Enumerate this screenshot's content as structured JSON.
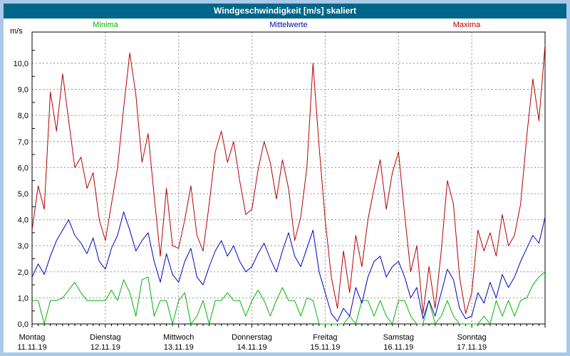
{
  "ui": {
    "frame_border_color": "#a9c9ea",
    "titlebar_bg": "#006687",
    "titlebar_text_color": "#ffffff",
    "plot_border_color": "#000000",
    "grid_color": "#909090",
    "plot_bg": "#ffffff"
  },
  "chart_data": {
    "type": "line",
    "title": "Windgeschwindigkeit [m/s] skaliert",
    "ylabel_unit": "m/s",
    "ylim": [
      0,
      11.2
    ],
    "grid": "dashed",
    "legend_position": "top",
    "y_ticks": [
      {
        "v": 0,
        "label": "0,0"
      },
      {
        "v": 1,
        "label": "1,0"
      },
      {
        "v": 2,
        "label": "2,0"
      },
      {
        "v": 3,
        "label": "3,0"
      },
      {
        "v": 4,
        "label": "4,0"
      },
      {
        "v": 5,
        "label": "5,0"
      },
      {
        "v": 6,
        "label": "6,0"
      },
      {
        "v": 7,
        "label": "7,0"
      },
      {
        "v": 8,
        "label": "8,0"
      },
      {
        "v": 9,
        "label": "9,0"
      },
      {
        "v": 10,
        "label": "10,0"
      }
    ],
    "x_range_days": 7,
    "days": [
      {
        "name": "Montag",
        "date": "11.11.19"
      },
      {
        "name": "Dienstag",
        "date": "12.11.19"
      },
      {
        "name": "Mittwoch",
        "date": "13.11.19"
      },
      {
        "name": "Donnerstag",
        "date": "14.11.19"
      },
      {
        "name": "Freitag",
        "date": "15.11.19"
      },
      {
        "name": "Samstag",
        "date": "16.11.19"
      },
      {
        "name": "Sonntag",
        "date": "17.11.19"
      }
    ],
    "series": [
      {
        "name": "Minima",
        "color": "#00b400",
        "values": [
          0.9,
          0.9,
          0.0,
          0.9,
          0.9,
          1.0,
          1.3,
          1.6,
          1.2,
          0.9,
          0.9,
          0.9,
          0.9,
          1.3,
          0.9,
          1.7,
          1.2,
          0.3,
          1.7,
          1.8,
          0.3,
          0.9,
          0.9,
          0.0,
          0.9,
          1.2,
          0.0,
          0.3,
          0.9,
          0.0,
          0.9,
          0.9,
          1.2,
          0.9,
          0.9,
          0.3,
          0.9,
          1.3,
          0.9,
          0.3,
          0.9,
          1.4,
          0.9,
          0.9,
          0.3,
          1.0,
          0.9,
          0.0,
          0.0,
          0.0,
          0.0,
          0.0,
          0.3,
          0.0,
          0.9,
          0.9,
          0.3,
          0.9,
          0.3,
          0.0,
          0.9,
          0.9,
          0.3,
          0.0,
          0.0,
          0.9,
          0.0,
          0.3,
          0.9,
          0.3,
          0.0,
          0.0,
          0.0,
          0.0,
          0.3,
          0.0,
          0.9,
          0.3,
          0.9,
          0.3,
          0.9,
          1.0,
          1.5,
          1.8,
          2.0
        ]
      },
      {
        "name": "Mittelwerte",
        "color": "#0000c8",
        "values": [
          1.8,
          2.3,
          1.9,
          2.6,
          3.2,
          3.6,
          4.0,
          3.4,
          3.1,
          2.7,
          3.3,
          2.4,
          2.1,
          2.9,
          3.4,
          4.3,
          3.6,
          2.8,
          3.2,
          3.5,
          2.4,
          1.6,
          2.7,
          1.9,
          1.6,
          2.4,
          2.9,
          1.8,
          1.5,
          2.2,
          2.8,
          3.2,
          2.6,
          3.0,
          2.4,
          2.0,
          2.2,
          2.7,
          3.1,
          2.5,
          2.0,
          2.8,
          3.5,
          2.6,
          2.2,
          2.9,
          3.6,
          2.0,
          1.2,
          0.4,
          0.1,
          0.6,
          0.3,
          1.4,
          0.8,
          1.8,
          2.4,
          2.6,
          1.8,
          2.2,
          2.4,
          1.8,
          1.0,
          1.4,
          0.2,
          0.9,
          0.3,
          1.2,
          2.1,
          1.7,
          0.6,
          0.2,
          0.3,
          1.2,
          0.8,
          1.6,
          1.0,
          1.9,
          1.4,
          1.8,
          2.4,
          2.9,
          3.4,
          3.1,
          4.1
        ]
      },
      {
        "name": "Maxima",
        "color": "#b40000",
        "values": [
          3.6,
          5.3,
          4.4,
          8.9,
          7.4,
          9.6,
          7.8,
          6.0,
          6.4,
          5.2,
          5.8,
          4.0,
          3.2,
          4.6,
          6.0,
          8.3,
          10.4,
          8.8,
          6.2,
          7.3,
          4.9,
          2.6,
          5.2,
          3.0,
          2.9,
          4.0,
          5.3,
          3.4,
          2.8,
          4.6,
          6.6,
          7.4,
          6.2,
          7.0,
          5.5,
          4.2,
          4.4,
          5.9,
          7.0,
          6.2,
          4.8,
          6.3,
          5.2,
          3.2,
          4.1,
          6.0,
          10.0,
          6.8,
          4.0,
          1.8,
          0.6,
          2.8,
          1.2,
          3.4,
          2.2,
          4.0,
          5.2,
          6.3,
          4.4,
          5.8,
          6.6,
          4.2,
          2.0,
          3.0,
          0.4,
          2.2,
          0.6,
          2.8,
          5.5,
          4.6,
          1.8,
          0.4,
          1.2,
          3.6,
          2.8,
          3.5,
          2.6,
          4.2,
          3.0,
          3.4,
          4.6,
          7.2,
          9.4,
          7.8,
          10.7
        ]
      }
    ]
  }
}
